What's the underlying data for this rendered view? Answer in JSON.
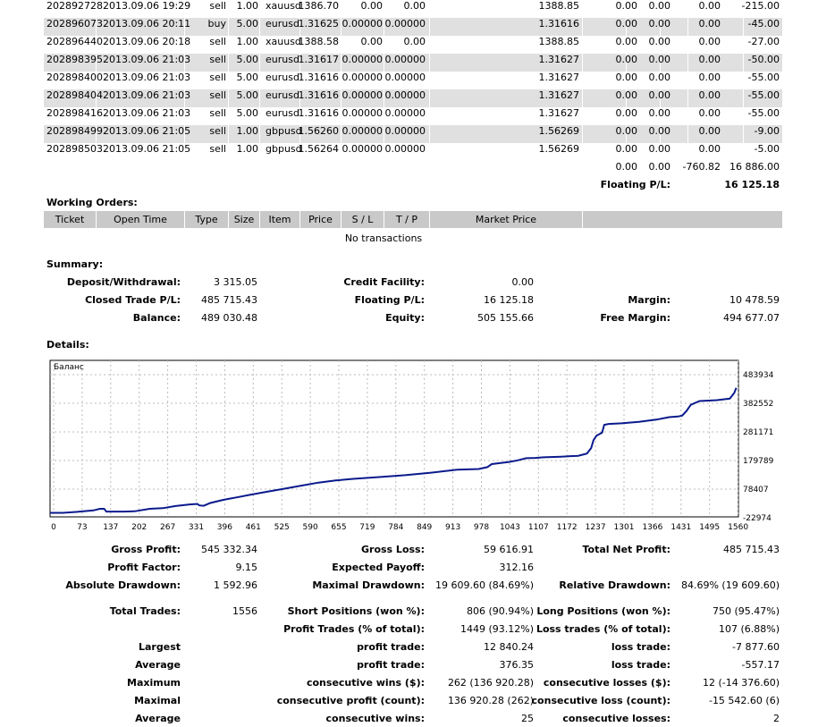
{
  "trades": [
    {
      "ticket": "202892728",
      "time": "2013.09.06 19:29",
      "type": "sell",
      "size": "1.00",
      "item": "xauusd",
      "price": "1386.70",
      "sl": "0.00",
      "tp": "0.00",
      "close": "1388.85",
      "commission": "0.00",
      "taxes": "0.00",
      "swap": "0.00",
      "profit": "-215.00"
    },
    {
      "ticket": "202896073",
      "time": "2013.09.06 20:11",
      "type": "buy",
      "size": "5.00",
      "item": "eurusd",
      "price": "1.31625",
      "sl": "0.00000",
      "tp": "0.00000",
      "close": "1.31616",
      "commission": "0.00",
      "taxes": "0.00",
      "swap": "0.00",
      "profit": "-45.00"
    },
    {
      "ticket": "202896440",
      "time": "2013.09.06 20:18",
      "type": "sell",
      "size": "1.00",
      "item": "xauusd",
      "price": "1388.58",
      "sl": "0.00",
      "tp": "0.00",
      "close": "1388.85",
      "commission": "0.00",
      "taxes": "0.00",
      "swap": "0.00",
      "profit": "-27.00"
    },
    {
      "ticket": "202898395",
      "time": "2013.09.06 21:03",
      "type": "sell",
      "size": "5.00",
      "item": "eurusd",
      "price": "1.31617",
      "sl": "0.00000",
      "tp": "0.00000",
      "close": "1.31627",
      "commission": "0.00",
      "taxes": "0.00",
      "swap": "0.00",
      "profit": "-50.00"
    },
    {
      "ticket": "202898400",
      "time": "2013.09.06 21:03",
      "type": "sell",
      "size": "5.00",
      "item": "eurusd",
      "price": "1.31616",
      "sl": "0.00000",
      "tp": "0.00000",
      "close": "1.31627",
      "commission": "0.00",
      "taxes": "0.00",
      "swap": "0.00",
      "profit": "-55.00"
    },
    {
      "ticket": "202898404",
      "time": "2013.09.06 21:03",
      "type": "sell",
      "size": "5.00",
      "item": "eurusd",
      "price": "1.31616",
      "sl": "0.00000",
      "tp": "0.00000",
      "close": "1.31627",
      "commission": "0.00",
      "taxes": "0.00",
      "swap": "0.00",
      "profit": "-55.00"
    },
    {
      "ticket": "202898416",
      "time": "2013.09.06 21:03",
      "type": "sell",
      "size": "5.00",
      "item": "eurusd",
      "price": "1.31616",
      "sl": "0.00000",
      "tp": "0.00000",
      "close": "1.31627",
      "commission": "0.00",
      "taxes": "0.00",
      "swap": "0.00",
      "profit": "-55.00"
    },
    {
      "ticket": "202898499",
      "time": "2013.09.06 21:05",
      "type": "sell",
      "size": "1.00",
      "item": "gbpusd",
      "price": "1.56260",
      "sl": "0.00000",
      "tp": "0.00000",
      "close": "1.56269",
      "commission": "0.00",
      "taxes": "0.00",
      "swap": "0.00",
      "profit": "-9.00"
    },
    {
      "ticket": "202898503",
      "time": "2013.09.06 21:05",
      "type": "sell",
      "size": "1.00",
      "item": "gbpusd",
      "price": "1.56264",
      "sl": "0.00000",
      "tp": "0.00000",
      "close": "1.56269",
      "commission": "0.00",
      "taxes": "0.00",
      "swap": "0.00",
      "profit": "-5.00"
    }
  ],
  "totals": {
    "commission": "0.00",
    "taxes": "0.00",
    "swap": "-760.82",
    "profit": "16 886.00"
  },
  "floating": {
    "label": "Floating P/L:",
    "value": "16 125.18"
  },
  "working_orders": {
    "title": "Working Orders:",
    "headers": [
      "Ticket",
      "Open Time",
      "Type",
      "Size",
      "Item",
      "Price",
      "S / L",
      "T / P",
      "Market Price"
    ],
    "empty": "No transactions"
  },
  "summary": {
    "title": "Summary:",
    "deposit": {
      "label": "Deposit/Withdrawal:",
      "value": "3 315.05"
    },
    "credit": {
      "label": "Credit Facility:",
      "value": "0.00"
    },
    "closed_pl": {
      "label": "Closed Trade P/L:",
      "value": "485 715.43"
    },
    "floating_pl": {
      "label": "Floating P/L:",
      "value": "16 125.18"
    },
    "margin": {
      "label": "Margin:",
      "value": "10 478.59"
    },
    "balance": {
      "label": "Balance:",
      "value": "489 030.48"
    },
    "equity": {
      "label": "Equity:",
      "value": "505 155.66"
    },
    "free_margin": {
      "label": "Free Margin:",
      "value": "494 677.07"
    }
  },
  "details_title": "Details:",
  "chart_data": {
    "type": "line",
    "title": "Баланс",
    "x_ticks": [
      "0",
      "73",
      "137",
      "202",
      "267",
      "331",
      "396",
      "461",
      "525",
      "590",
      "655",
      "719",
      "784",
      "849",
      "913",
      "978",
      "1043",
      "1107",
      "1172",
      "1237",
      "1301",
      "1366",
      "1431",
      "1495",
      "1560"
    ],
    "y_ticks": [
      "483934",
      "382552",
      "281171",
      "179789",
      "78407",
      "-22974"
    ],
    "xlim": [
      0,
      1590
    ],
    "ylim": [
      -22974,
      483934
    ],
    "line_color": "#0a1a8c",
    "series": [
      {
        "x": [
          0,
          30,
          60,
          100,
          115,
          125,
          130,
          145,
          170,
          195,
          230,
          260,
          290,
          320,
          340,
          345,
          355,
          370,
          400,
          430,
          460,
          500,
          540,
          580,
          620,
          660,
          700,
          760,
          820,
          880,
          940,
          990,
          1010,
          1020,
          1060,
          1080,
          1100,
          1120,
          1140,
          1180,
          1220,
          1240,
          1250,
          1255,
          1262,
          1275,
          1280,
          1290,
          1320,
          1360,
          1400,
          1430,
          1450,
          1460,
          1470,
          1480,
          1500,
          1540,
          1570,
          1580,
          1585
        ],
        "y": [
          -10000,
          -10000,
          -7000,
          -2000,
          3000,
          3000,
          -6000,
          -6000,
          -6000,
          -5000,
          3000,
          5000,
          12000,
          17000,
          19000,
          14000,
          13000,
          22000,
          32000,
          40000,
          48000,
          58000,
          68000,
          78000,
          88000,
          95000,
          100000,
          106000,
          112000,
          120000,
          130000,
          132000,
          138000,
          148000,
          155000,
          160000,
          167000,
          168000,
          170000,
          172000,
          175000,
          182000,
          200000,
          225000,
          240000,
          250000,
          275000,
          278000,
          280000,
          285000,
          292000,
          300000,
          302000,
          305000,
          320000,
          340000,
          352000,
          355000,
          360000,
          378000,
          395000
        ]
      }
    ]
  },
  "stats": {
    "gross_profit": {
      "label": "Gross Profit:",
      "value": "545 332.34"
    },
    "gross_loss": {
      "label": "Gross Loss:",
      "value": "59 616.91"
    },
    "total_net": {
      "label": "Total Net Profit:",
      "value": "485 715.43"
    },
    "profit_factor": {
      "label": "Profit Factor:",
      "value": "9.15"
    },
    "expected_payoff": {
      "label": "Expected Payoff:",
      "value": "312.16"
    },
    "abs_dd": {
      "label": "Absolute Drawdown:",
      "value": "1 592.96"
    },
    "max_dd": {
      "label": "Maximal Drawdown:",
      "value": "19 609.60 (84.69%)"
    },
    "rel_dd": {
      "label": "Relative Drawdown:",
      "value": "84.69% (19 609.60)"
    },
    "total_trades": {
      "label": "Total Trades:",
      "value": "1556"
    },
    "short_pos": {
      "label": "Short Positions (won %):",
      "value": "806 (90.94%)"
    },
    "long_pos": {
      "label": "Long Positions (won %):",
      "value": "750 (95.47%)"
    },
    "profit_trades": {
      "label": "Profit Trades (% of total):",
      "value": "1449 (93.12%)"
    },
    "loss_trades": {
      "label": "Loss trades (% of total):",
      "value": "107 (6.88%)"
    },
    "largest": {
      "label": "Largest",
      "p_label": "profit trade:",
      "p_value": "12 840.24",
      "l_label": "loss trade:",
      "l_value": "-7 877.60"
    },
    "average": {
      "label": "Average",
      "p_label": "profit trade:",
      "p_value": "376.35",
      "l_label": "loss trade:",
      "l_value": "-557.17"
    },
    "maximum": {
      "label": "Maximum",
      "p_label": "consecutive wins ($):",
      "p_value": "262 (136 920.28)",
      "l_label": "consecutive losses ($):",
      "l_value": "12 (-14 376.60)"
    },
    "maximal": {
      "label": "Maximal",
      "p_label": "consecutive profit (count):",
      "p_value": "136 920.28 (262)",
      "l_label": "consecutive loss (count):",
      "l_value": "-15 542.60 (6)"
    },
    "average2": {
      "label": "Average",
      "p_label": "consecutive wins:",
      "p_value": "25",
      "l_label": "consecutive losses:",
      "l_value": "2"
    }
  }
}
